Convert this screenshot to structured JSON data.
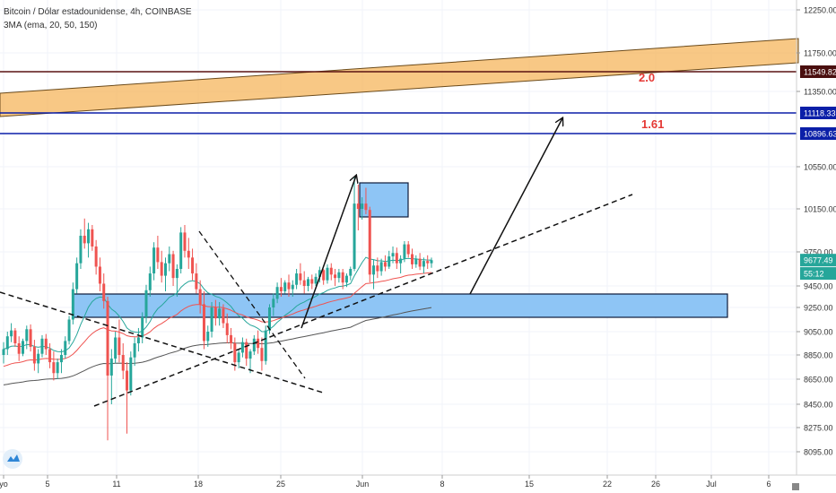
{
  "header": {
    "title": "Bitcoin / Dólar estadounidense, 4h, COINBASE",
    "indicator": "3MA (ema, 20, 50, 150)"
  },
  "chart_data": {
    "type": "candlestick",
    "y_ticks": [
      "12250.00",
      "11750.00",
      "11350.00",
      "10550.00",
      "10150.00",
      "9750.00",
      "9450.00",
      "9250.00",
      "9050.00",
      "8850.00",
      "8650.00",
      "8450.00",
      "8275.00",
      "8095.00"
    ],
    "x_ticks": [
      "yo",
      "5",
      "11",
      "18",
      "25",
      "Jun",
      "8",
      "15",
      "22",
      "26",
      "Jul",
      "6"
    ],
    "price_labels": [
      {
        "text": "11549.82",
        "price": 11549.82,
        "color": "#4a0f0f"
      },
      {
        "text": "11118.33",
        "price": 11118.33,
        "color": "#0b1fa8"
      },
      {
        "text": "10896.63",
        "price": 10896.63,
        "color": "#0b1fa8"
      },
      {
        "text": "9677.49",
        "price": 9677.49,
        "color": "#26a69a"
      },
      {
        "text": "55:12",
        "price": 9560,
        "color": "#26a69a"
      }
    ],
    "horizontal_lines": [
      {
        "price": 11549.82,
        "color": "#5a1212"
      },
      {
        "price": 11118.33,
        "color": "#0b1fa8"
      },
      {
        "price": 10896.63,
        "color": "#0b1fa8"
      }
    ],
    "fib_labels": [
      "2.0",
      "1.61"
    ],
    "ohlc": [
      [
        8850,
        8960,
        8780,
        8900
      ],
      [
        8900,
        9050,
        8850,
        9010
      ],
      [
        9010,
        9120,
        8960,
        9060
      ],
      [
        9060,
        9080,
        8920,
        8950
      ],
      [
        8950,
        9010,
        8800,
        8860
      ],
      [
        8860,
        8990,
        8840,
        8970
      ],
      [
        8970,
        9100,
        8900,
        9070
      ],
      [
        9070,
        9110,
        8880,
        8920
      ],
      [
        8920,
        8980,
        8720,
        8780
      ],
      [
        8780,
        8900,
        8700,
        8860
      ],
      [
        8860,
        9020,
        8830,
        8990
      ],
      [
        8990,
        9030,
        8850,
        8900
      ],
      [
        8900,
        8950,
        8740,
        8790
      ],
      [
        8790,
        8880,
        8640,
        8700
      ],
      [
        8700,
        8820,
        8650,
        8790
      ],
      [
        8790,
        8900,
        8700,
        8850
      ],
      [
        8850,
        9010,
        8820,
        8970
      ],
      [
        8970,
        9180,
        8940,
        9150
      ],
      [
        9150,
        9480,
        9110,
        9420
      ],
      [
        9420,
        9700,
        9380,
        9650
      ],
      [
        9650,
        9960,
        9600,
        9900
      ],
      [
        9900,
        10060,
        9780,
        9830
      ],
      [
        9830,
        10020,
        9700,
        9960
      ],
      [
        9960,
        10000,
        9760,
        9800
      ],
      [
        9800,
        9860,
        9550,
        9620
      ],
      [
        9620,
        9700,
        9400,
        9470
      ],
      [
        9470,
        9560,
        9240,
        9310
      ],
      [
        9310,
        9350,
        8180,
        8680
      ],
      [
        8680,
        8900,
        8450,
        8820
      ],
      [
        8820,
        9050,
        8780,
        9000
      ],
      [
        9000,
        9150,
        8790,
        8850
      ],
      [
        8850,
        8950,
        8650,
        8720
      ],
      [
        8720,
        8790,
        8230,
        8560
      ],
      [
        8560,
        8880,
        8520,
        8830
      ],
      [
        8830,
        9000,
        8760,
        8950
      ],
      [
        8950,
        9080,
        8880,
        9000
      ],
      [
        9000,
        9210,
        8950,
        9170
      ],
      [
        9170,
        9460,
        9120,
        9410
      ],
      [
        9410,
        9620,
        9350,
        9560
      ],
      [
        9560,
        9840,
        9500,
        9790
      ],
      [
        9790,
        9900,
        9600,
        9660
      ],
      [
        9660,
        9760,
        9480,
        9540
      ],
      [
        9540,
        9700,
        9400,
        9650
      ],
      [
        9650,
        9800,
        9580,
        9730
      ],
      [
        9730,
        9760,
        9450,
        9520
      ],
      [
        9520,
        9640,
        9350,
        9600
      ],
      [
        9600,
        9980,
        9560,
        9930
      ],
      [
        9930,
        10000,
        9700,
        9760
      ],
      [
        9760,
        9880,
        9600,
        9700
      ],
      [
        9700,
        9780,
        9500,
        9560
      ],
      [
        9560,
        9650,
        9380,
        9420
      ],
      [
        9420,
        9500,
        9200,
        9280
      ],
      [
        9280,
        9400,
        8900,
        8970
      ],
      [
        8970,
        9100,
        8920,
        9050
      ],
      [
        9050,
        9300,
        9000,
        9250
      ],
      [
        9250,
        9320,
        9100,
        9160
      ],
      [
        9160,
        9300,
        9100,
        9240
      ],
      [
        9240,
        9280,
        9080,
        9120
      ],
      [
        9120,
        9200,
        8950,
        9020
      ],
      [
        9020,
        9080,
        8900,
        8950
      ],
      [
        8950,
        9000,
        8720,
        8790
      ],
      [
        8790,
        8900,
        8740,
        8870
      ],
      [
        8870,
        9000,
        8830,
        8960
      ],
      [
        8960,
        8990,
        8760,
        8820
      ],
      [
        8820,
        8900,
        8700,
        8880
      ],
      [
        8880,
        9020,
        8850,
        8990
      ],
      [
        8990,
        9060,
        8860,
        8910
      ],
      [
        8910,
        9000,
        8720,
        8800
      ],
      [
        8800,
        9100,
        8770,
        9060
      ],
      [
        9060,
        9280,
        9030,
        9250
      ],
      [
        9250,
        9380,
        9180,
        9330
      ],
      [
        9330,
        9480,
        9290,
        9440
      ],
      [
        9440,
        9520,
        9350,
        9400
      ],
      [
        9400,
        9500,
        9380,
        9480
      ],
      [
        9480,
        9550,
        9350,
        9420
      ],
      [
        9420,
        9500,
        9350,
        9460
      ],
      [
        9460,
        9600,
        9420,
        9560
      ],
      [
        9560,
        9650,
        9460,
        9500
      ],
      [
        9500,
        9580,
        9380,
        9450
      ],
      [
        9450,
        9530,
        9400,
        9510
      ],
      [
        9510,
        9550,
        9420,
        9470
      ],
      [
        9470,
        9560,
        9450,
        9530
      ],
      [
        9530,
        9620,
        9480,
        9590
      ],
      [
        9590,
        9600,
        9460,
        9500
      ],
      [
        9500,
        9640,
        9470,
        9610
      ],
      [
        9610,
        9650,
        9500,
        9550
      ],
      [
        9550,
        9600,
        9450,
        9520
      ],
      [
        9520,
        9600,
        9480,
        9570
      ],
      [
        9570,
        9600,
        9420,
        9480
      ],
      [
        9480,
        9560,
        9440,
        9540
      ],
      [
        9540,
        9620,
        9500,
        9600
      ],
      [
        9600,
        10450,
        9580,
        10200
      ],
      [
        10200,
        10380,
        9950,
        10150
      ],
      [
        10150,
        10260,
        10050,
        10200
      ],
      [
        10200,
        10350,
        10100,
        10140
      ],
      [
        10140,
        10170,
        9480,
        9550
      ],
      [
        9550,
        9680,
        9420,
        9630
      ],
      [
        9630,
        9700,
        9520,
        9580
      ],
      [
        9580,
        9690,
        9540,
        9660
      ],
      [
        9660,
        9720,
        9580,
        9620
      ],
      [
        9620,
        9760,
        9600,
        9710
      ],
      [
        9710,
        9800,
        9650,
        9740
      ],
      [
        9740,
        9790,
        9600,
        9650
      ],
      [
        9650,
        9720,
        9560,
        9690
      ],
      [
        9690,
        9850,
        9660,
        9820
      ],
      [
        9820,
        9850,
        9700,
        9730
      ],
      [
        9730,
        9780,
        9600,
        9640
      ],
      [
        9640,
        9720,
        9610,
        9690
      ],
      [
        9690,
        9740,
        9590,
        9620
      ],
      [
        9620,
        9700,
        9560,
        9670
      ],
      [
        9670,
        9720,
        9600,
        9650
      ],
      [
        9650,
        9700,
        9610,
        9677
      ]
    ],
    "ma_lines": [
      {
        "name": "EMA 20",
        "color": "#26a69a",
        "period": 20
      },
      {
        "name": "EMA 50",
        "color": "#ef5350",
        "period": 50
      },
      {
        "name": "EMA 150",
        "color": "#555555",
        "period": 150
      }
    ]
  },
  "watermark": {
    "icon": "tradingview-logo-icon"
  }
}
